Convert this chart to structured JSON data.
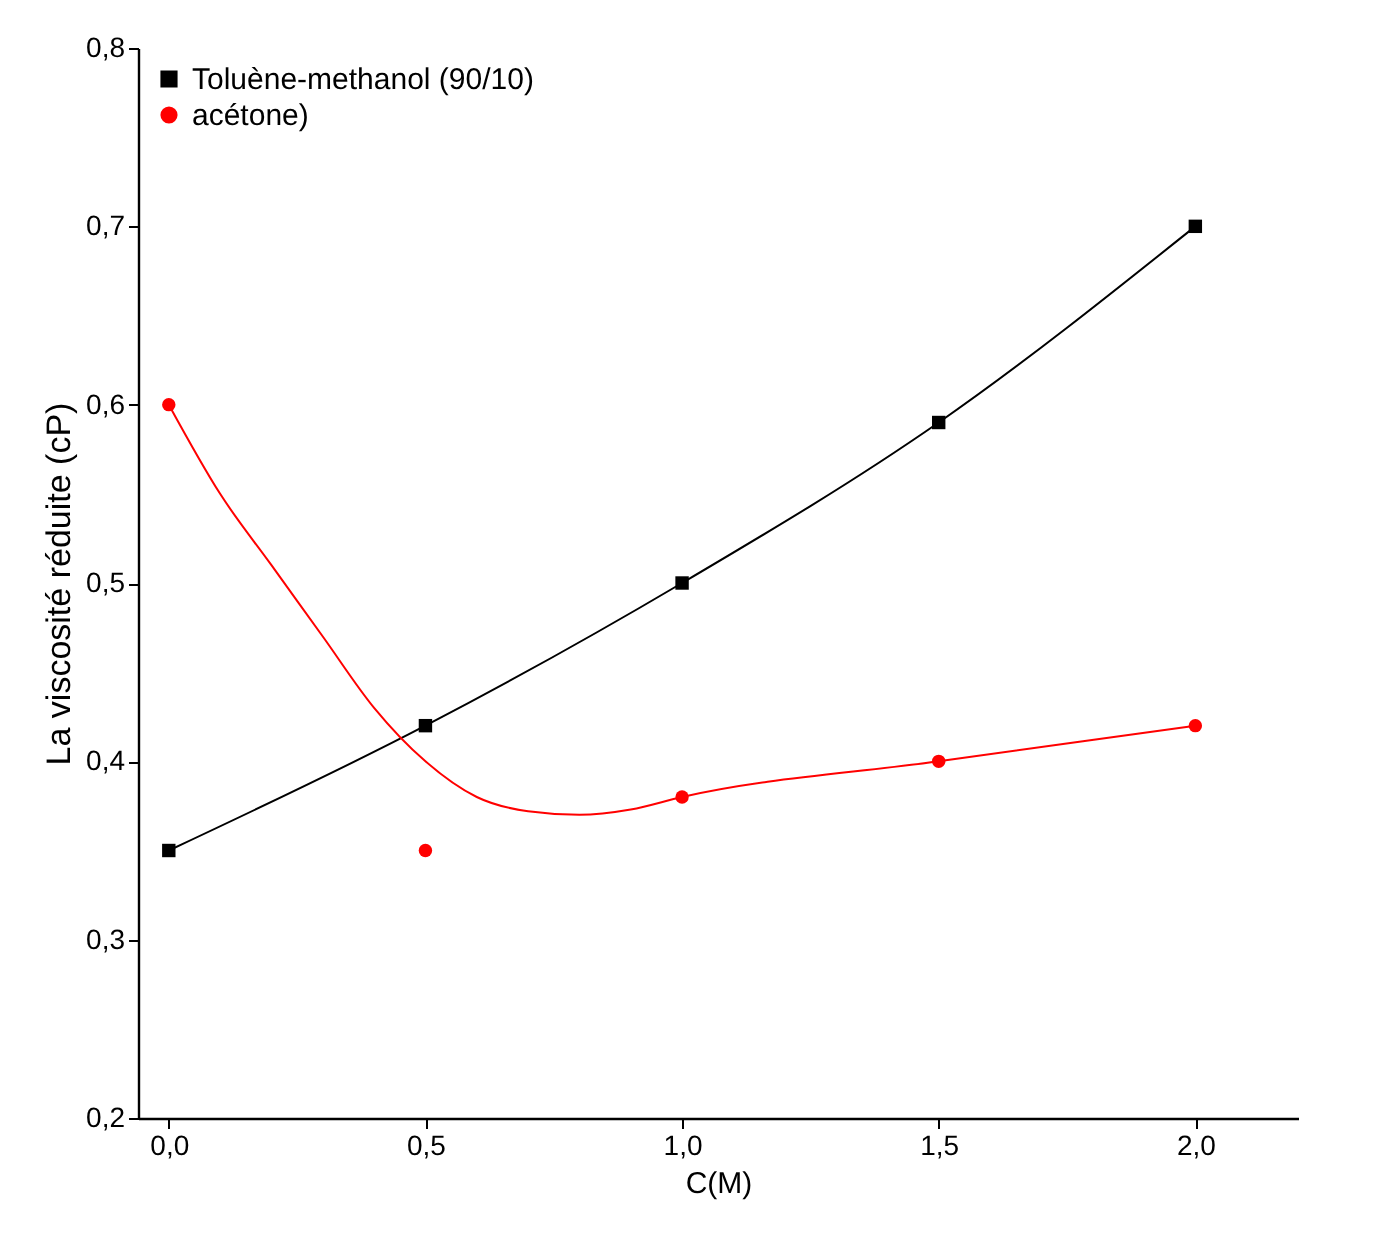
{
  "chart_data": {
    "type": "line",
    "xlabel": "C(M)",
    "ylabel": "La viscosité réduite (cP)",
    "xlim": [
      -0.06,
      2.2
    ],
    "ylim": [
      0.2,
      0.8
    ],
    "xticks": [
      {
        "value": 0,
        "label": "0,0"
      },
      {
        "value": 0.5,
        "label": "0,5"
      },
      {
        "value": 1,
        "label": "1,0"
      },
      {
        "value": 1.5,
        "label": "1,5"
      },
      {
        "value": 2,
        "label": "2,0"
      }
    ],
    "yticks": [
      {
        "value": 0.2,
        "label": "0,2"
      },
      {
        "value": 0.3,
        "label": "0,3"
      },
      {
        "value": 0.4,
        "label": "0,4"
      },
      {
        "value": 0.5,
        "label": "0,5"
      },
      {
        "value": 0.6,
        "label": "0,6"
      },
      {
        "value": 0.7,
        "label": "0,7"
      },
      {
        "value": 0.8,
        "label": "0,8"
      }
    ],
    "grid": false,
    "legend": "top left",
    "series": [
      {
        "name": "Toluène-methanol (90/10)",
        "type": "line",
        "marker": "square",
        "color": "#000000",
        "x": [
          0,
          0.5,
          1,
          1.5,
          2
        ],
        "values": [
          0.35,
          0.42,
          0.5,
          0.59,
          0.7
        ]
      },
      {
        "name": "acétone)",
        "type": "scatter",
        "marker": "circle",
        "color": "#ff0000",
        "x": [
          0,
          0.5,
          1,
          1.5,
          2
        ],
        "values": [
          0.6,
          0.35,
          0.38,
          0.4,
          0.42
        ]
      },
      {
        "type": "line",
        "marker": "none",
        "color": "#ff0000",
        "x": [
          0,
          0.1,
          0.2,
          0.3,
          0.4,
          0.5,
          0.6,
          0.7,
          0.8,
          0.9,
          1.0,
          1.5,
          2.0
        ],
        "values": [
          0.6,
          0.55,
          0.51,
          0.47,
          0.43,
          0.4,
          0.38,
          0.372,
          0.37,
          0.373,
          0.38,
          0.4,
          0.42
        ]
      }
    ]
  }
}
